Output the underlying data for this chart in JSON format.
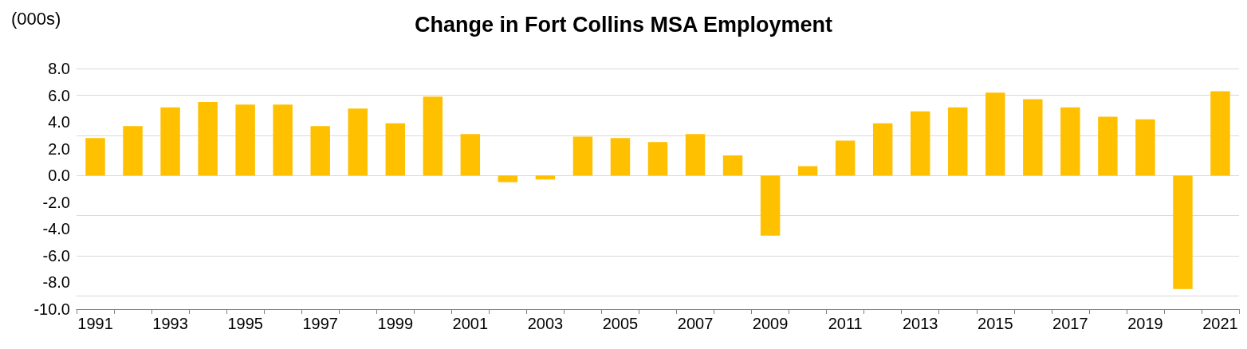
{
  "chart_data": {
    "type": "bar",
    "title": "Change in Fort Collins MSA Employment",
    "ylabel": "(000s)",
    "categories": [
      "1991",
      null,
      "1993",
      null,
      "1995",
      null,
      "1997",
      null,
      "1999",
      null,
      "2001",
      null,
      "2003",
      null,
      "2005",
      null,
      "2007",
      null,
      "2009",
      null,
      "2011",
      null,
      "2013",
      null,
      "2015",
      null,
      "2017",
      null,
      "2019",
      null,
      "2021"
    ],
    "values": [
      2.8,
      3.7,
      5.1,
      5.5,
      5.3,
      5.3,
      3.7,
      5.0,
      3.9,
      5.9,
      3.1,
      -0.5,
      -0.3,
      2.9,
      2.8,
      2.5,
      3.1,
      1.5,
      -4.5,
      0.7,
      2.6,
      3.9,
      4.8,
      5.1,
      6.2,
      5.7,
      5.1,
      4.4,
      4.2,
      -8.5,
      6.3
    ],
    "color": "#ffc000",
    "ylim": [
      -10,
      8
    ],
    "yticks": [
      {
        "value": -10,
        "label": "-10.0"
      },
      {
        "value": -8,
        "label": "-8.0"
      },
      {
        "value": -6,
        "label": "-6.0"
      },
      {
        "value": -4,
        "label": "-4.0"
      },
      {
        "value": -2,
        "label": "-2.0"
      },
      {
        "value": 0,
        "label": "0.0"
      },
      {
        "value": 2,
        "label": "2.0"
      },
      {
        "value": 4,
        "label": "4.0"
      },
      {
        "value": 6,
        "label": "6.0"
      },
      {
        "value": 8,
        "label": "8.0"
      }
    ],
    "grid": "y"
  }
}
